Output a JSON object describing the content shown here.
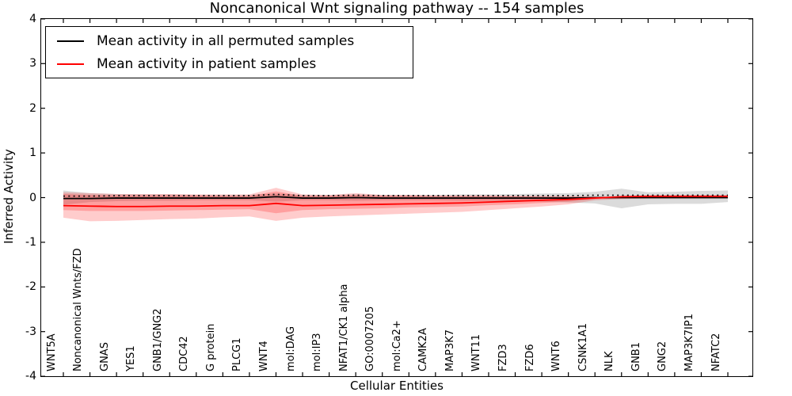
{
  "chart_data": {
    "type": "line",
    "title": "Noncanonical Wnt signaling pathway -- 154 samples",
    "xlabel": "Cellular Entities",
    "ylabel": "Inferred Activity",
    "ylim": [
      -4,
      4
    ],
    "yticks": [
      "4",
      "3",
      "2",
      "1",
      "0",
      "-1",
      "-2",
      "-3",
      "-4"
    ],
    "ytick_values": [
      4,
      3,
      2,
      1,
      0,
      -1,
      -2,
      -3,
      -4
    ],
    "grid": false,
    "legend_position": "upper left",
    "categories": [
      "WNT5A",
      "Noncanonical Wnts/FZD",
      "GNAS",
      "YES1",
      "GNB1/GNG2",
      "CDC42",
      "G protein",
      "PLCG1",
      "WNT4",
      "mol:DAG",
      "mol:IP3",
      "NFAT1/CK1 alpha",
      "GO:0007205",
      "mol:Ca2+",
      "CAMK2A",
      "MAP3K7",
      "WNT11",
      "FZD3",
      "FZD6",
      "WNT6",
      "CSNK1A1",
      "NLK",
      "GNB1",
      "GNG2",
      "MAP3K7IP1",
      "NFATC2"
    ],
    "series": [
      {
        "name": "Mean activity in all permuted samples",
        "color": "#000000",
        "style": "solid-with-dash-ticks",
        "values": [
          -0.02,
          -0.02,
          -0.01,
          -0.01,
          -0.01,
          -0.01,
          -0.01,
          -0.01,
          0.02,
          -0.01,
          -0.01,
          0.0,
          -0.01,
          -0.01,
          -0.01,
          -0.01,
          -0.01,
          -0.01,
          -0.01,
          -0.01,
          0.0,
          0.0,
          0.0,
          0.0,
          0.0,
          0.0
        ]
      },
      {
        "name": "Mean activity in patient samples",
        "color": "#ff0000",
        "style": "solid",
        "values": [
          -0.18,
          -0.19,
          -0.2,
          -0.2,
          -0.19,
          -0.19,
          -0.18,
          -0.18,
          -0.13,
          -0.18,
          -0.17,
          -0.16,
          -0.15,
          -0.14,
          -0.13,
          -0.12,
          -0.1,
          -0.08,
          -0.06,
          -0.04,
          -0.01,
          0.02,
          0.03,
          0.03,
          0.03,
          0.03
        ]
      }
    ],
    "bands": [
      {
        "name": "permuted-samples-range",
        "color": "#7f7f7f",
        "opacity": 0.28,
        "upper": [
          0.16,
          0.1,
          0.08,
          0.07,
          0.07,
          0.06,
          0.06,
          0.06,
          0.09,
          0.06,
          0.06,
          0.07,
          0.06,
          0.06,
          0.06,
          0.07,
          0.07,
          0.08,
          0.09,
          0.1,
          0.13,
          0.2,
          0.12,
          0.13,
          0.15,
          0.16
        ],
        "lower": [
          -0.16,
          -0.1,
          -0.08,
          -0.07,
          -0.07,
          -0.06,
          -0.06,
          -0.06,
          -0.09,
          -0.06,
          -0.06,
          -0.07,
          -0.06,
          -0.06,
          -0.06,
          -0.07,
          -0.07,
          -0.08,
          -0.09,
          -0.11,
          -0.13,
          -0.24,
          -0.15,
          -0.14,
          -0.14,
          -0.1
        ]
      },
      {
        "name": "patient-samples-range-outer",
        "color": "#ff0000",
        "opacity": 0.2,
        "upper": [
          0.12,
          0.1,
          0.08,
          0.08,
          0.08,
          0.07,
          0.07,
          0.07,
          0.22,
          0.07,
          0.06,
          0.1,
          0.06,
          0.06,
          0.05,
          0.05,
          0.05,
          0.04,
          0.04,
          0.03,
          0.02,
          0.02,
          0.02,
          0.02,
          0.02,
          0.02
        ],
        "lower": [
          -0.45,
          -0.53,
          -0.52,
          -0.5,
          -0.48,
          -0.47,
          -0.44,
          -0.42,
          -0.52,
          -0.45,
          -0.42,
          -0.4,
          -0.38,
          -0.36,
          -0.34,
          -0.32,
          -0.28,
          -0.24,
          -0.2,
          -0.15,
          -0.06,
          -0.03,
          -0.02,
          -0.02,
          -0.02,
          -0.02
        ]
      },
      {
        "name": "patient-samples-range-inner",
        "color": "#ff0000",
        "opacity": 0.22,
        "upper": [
          0.08,
          0.06,
          0.05,
          0.05,
          0.05,
          0.05,
          0.04,
          0.04,
          0.14,
          0.04,
          0.04,
          0.06,
          0.04,
          0.04,
          0.03,
          0.03,
          0.03,
          0.03,
          0.02,
          0.02,
          0.01,
          0.01,
          0.01,
          0.01,
          0.01,
          0.01
        ],
        "lower": [
          -0.28,
          -0.3,
          -0.3,
          -0.3,
          -0.29,
          -0.28,
          -0.27,
          -0.26,
          -0.35,
          -0.28,
          -0.26,
          -0.25,
          -0.24,
          -0.22,
          -0.21,
          -0.2,
          -0.17,
          -0.15,
          -0.12,
          -0.09,
          -0.03,
          -0.02,
          -0.01,
          -0.01,
          -0.01,
          -0.01
        ]
      }
    ]
  }
}
